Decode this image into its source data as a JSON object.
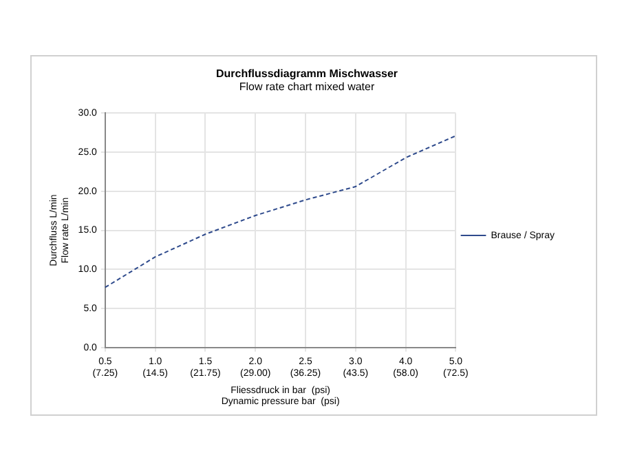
{
  "chart_data": {
    "type": "line",
    "title": "Durchflussdiagramm Mischwasser",
    "subtitle": "Flow rate chart mixed water",
    "xlabel": "Fliessdruck in bar  (psi)\nDynamic pressure bar  (psi)",
    "ylabel": "Durchfluss L/min\nFlow rate L/min",
    "categories": [
      "0.5\n(7.25)",
      "1.0\n(14.5)",
      "1.5\n(21.75)",
      "2.0\n(29.00)",
      "2.5\n(36.25)",
      "3.0\n(43.5)",
      "4.0\n(58.0)",
      "5.0\n(72.5)"
    ],
    "series": [
      {
        "name": "Brause / Spray",
        "color": "#2e4a8c",
        "values": [
          7.7,
          11.6,
          14.5,
          16.9,
          18.9,
          20.6,
          24.3,
          27.1
        ]
      }
    ],
    "ylim": [
      0,
      30
    ],
    "yticks": [
      {
        "value": 0,
        "label": "0.0"
      },
      {
        "value": 5,
        "label": "5.0"
      },
      {
        "value": 10,
        "label": "10.0"
      },
      {
        "value": 15,
        "label": "15.0"
      },
      {
        "value": 20,
        "label": "20.0"
      },
      {
        "value": 25,
        "label": "25.0"
      },
      {
        "value": 30,
        "label": "30.0"
      }
    ],
    "grid": true,
    "legend": "right",
    "marker": "none",
    "line_style": "dashed"
  }
}
